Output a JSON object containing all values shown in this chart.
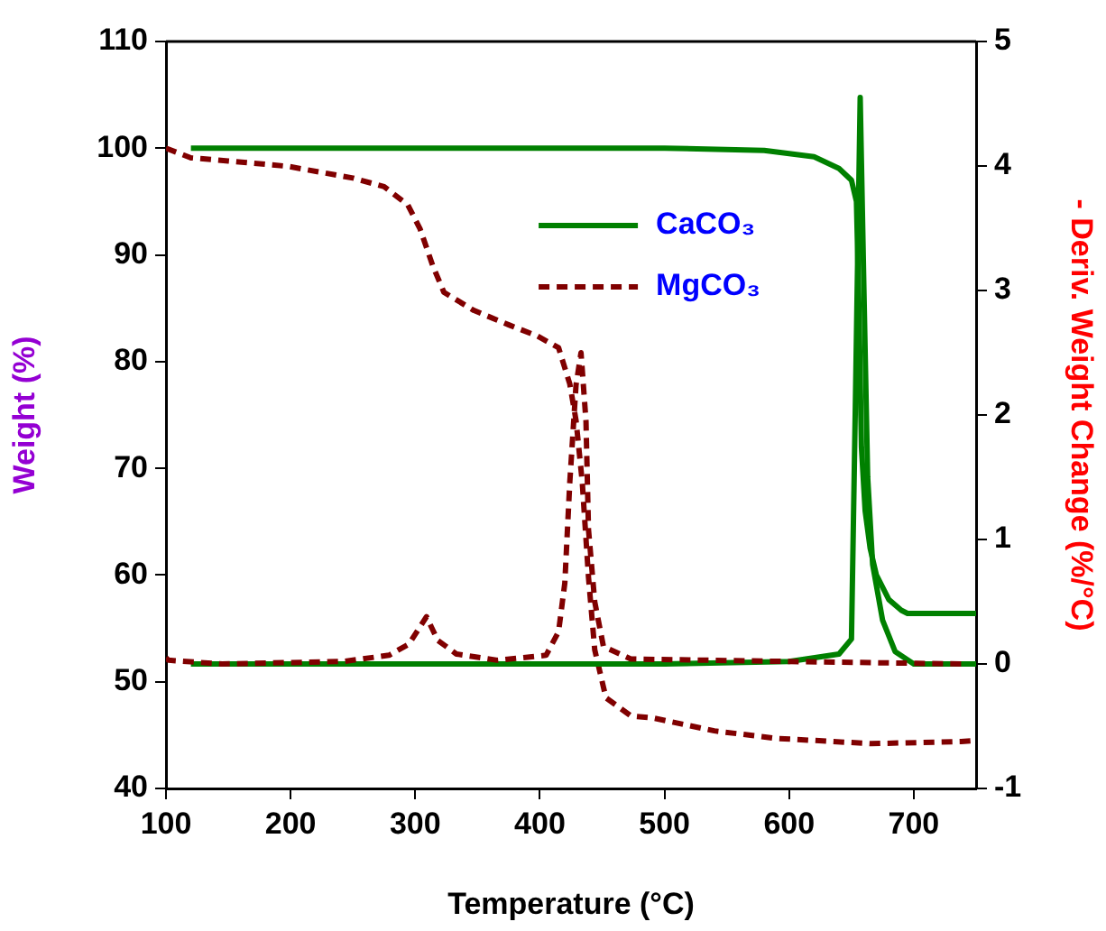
{
  "chart_data": {
    "type": "line",
    "xlabel": "Temperature (°C)",
    "ylabel": "Weight (%)",
    "y2label": "- Deriv. Weight Change (%/°C)",
    "xlim": [
      100,
      750
    ],
    "xticks": [
      100,
      200,
      300,
      400,
      500,
      600,
      700
    ],
    "ylim": [
      40,
      110
    ],
    "yticks": [
      40,
      50,
      60,
      70,
      80,
      90,
      100,
      110
    ],
    "y2lim": [
      -1,
      5
    ],
    "y2ticks": [
      -1,
      0,
      1,
      2,
      3,
      4,
      5
    ],
    "grid": false,
    "legend": "top right",
    "marker": "none",
    "series": [
      {
        "name": "CaCO₃",
        "color": "#008000",
        "line_style": "solid",
        "x": [
          120,
          300,
          500,
          580,
          620,
          640,
          650,
          654,
          656,
          658,
          661,
          665,
          670,
          680,
          690,
          695,
          750
        ],
        "values": [
          100,
          100,
          100,
          99.8,
          99.2,
          98.1,
          97,
          95,
          85,
          72,
          66,
          62.5,
          60,
          57.7,
          56.7,
          56.4,
          56.4
        ]
      },
      {
        "name": "MgCO₃",
        "color": "#800000",
        "line_style": "dashed",
        "x": [
          100,
          120,
          150,
          198,
          250,
          275,
          294,
          304,
          314,
          323,
          347,
          376,
          398,
          415,
          424,
          429,
          434,
          439,
          444,
          453,
          473,
          491,
          540,
          589,
          666,
          738,
          750
        ],
        "values": [
          100,
          99.1,
          98.8,
          98.3,
          97.2,
          96.4,
          94.7,
          92.4,
          89,
          86.5,
          84.8,
          83.4,
          82.4,
          81.3,
          77.9,
          74.5,
          68.7,
          59.8,
          53,
          48.5,
          46.8,
          46.6,
          45.4,
          44.7,
          44.2,
          44.4,
          44.5
        ]
      },
      {
        "color": "#008000",
        "line_style": "solid",
        "axis": "y2",
        "x": [
          120,
          500,
          600,
          640,
          650,
          653,
          657,
          660,
          663,
          667,
          675,
          685,
          700,
          750
        ],
        "values": [
          0,
          0,
          0.02,
          0.08,
          0.2,
          2,
          4.55,
          3,
          1.5,
          0.8,
          0.35,
          0.1,
          0,
          0
        ]
      },
      {
        "color": "#800000",
        "line_style": "dashed",
        "axis": "y2",
        "x": [
          100,
          102,
          145,
          242,
          279,
          295,
          309,
          318,
          333,
          366,
          405,
          415,
          420,
          424,
          429,
          433,
          437,
          439,
          444,
          451,
          473,
          600,
          740
        ],
        "values": [
          0.05,
          0.03,
          0,
          0.02,
          0.07,
          0.16,
          0.38,
          0.19,
          0.08,
          0.03,
          0.07,
          0.26,
          0.65,
          1.46,
          2.24,
          2.5,
          1.95,
          1.08,
          0.5,
          0.14,
          0.04,
          0.02,
          0
        ]
      }
    ]
  }
}
